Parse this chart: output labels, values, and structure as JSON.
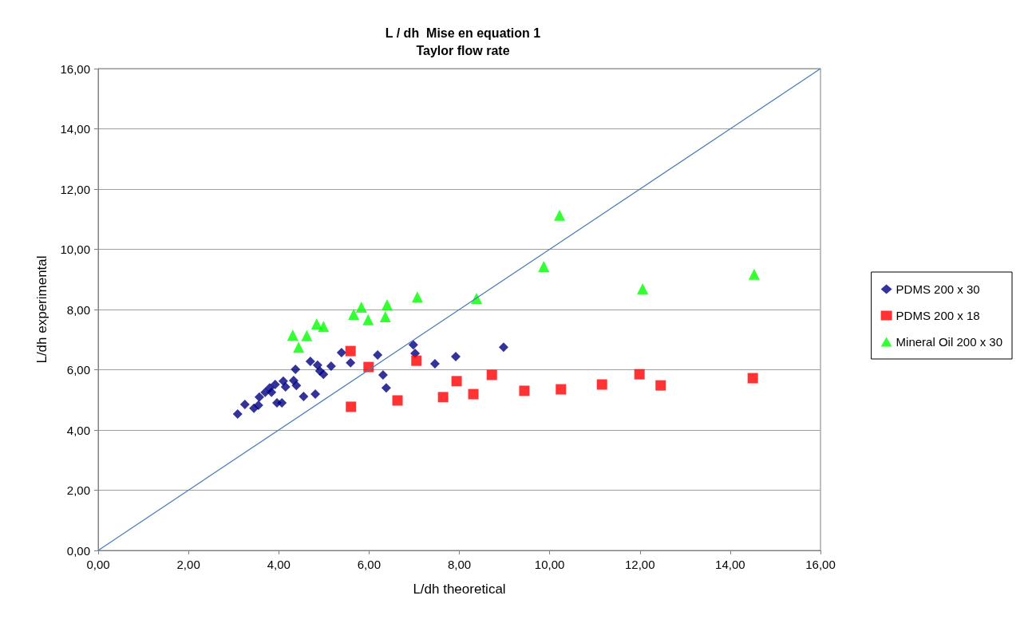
{
  "chart_data": {
    "type": "scatter",
    "title": "L / dh  Mise en equation 1",
    "subtitle": "Taylor flow rate",
    "xlabel": "L/dh theoretical",
    "ylabel": "L/dh experimental",
    "xlim": [
      0,
      16
    ],
    "ylim": [
      0,
      16
    ],
    "xticks": [
      {
        "value": 0,
        "label": "0,00"
      },
      {
        "value": 2,
        "label": "2,00"
      },
      {
        "value": 4,
        "label": "4,00"
      },
      {
        "value": 6,
        "label": "6,00"
      },
      {
        "value": 8,
        "label": "8,00"
      },
      {
        "value": 10,
        "label": "10,00"
      },
      {
        "value": 12,
        "label": "12,00"
      },
      {
        "value": 14,
        "label": "14,00"
      },
      {
        "value": 16,
        "label": "16,00"
      }
    ],
    "yticks": [
      {
        "value": 0,
        "label": "0,00"
      },
      {
        "value": 2,
        "label": "2,00"
      },
      {
        "value": 4,
        "label": "4,00"
      },
      {
        "value": 6,
        "label": "6,00"
      },
      {
        "value": 8,
        "label": "8,00"
      },
      {
        "value": 10,
        "label": "10,00"
      },
      {
        "value": 12,
        "label": "12,00"
      },
      {
        "value": 14,
        "label": "14,00"
      },
      {
        "value": 16,
        "label": "16,00"
      }
    ],
    "grid": "y",
    "legend": "right",
    "series": [
      {
        "name": "PDMS 200 x 30",
        "color": "#000080",
        "marker": "diamond",
        "x": [
          3.09,
          3.25,
          3.45,
          3.55,
          3.57,
          3.7,
          3.8,
          3.84,
          3.92,
          3.96,
          4.07,
          4.1,
          4.15,
          4.33,
          4.37,
          4.39,
          4.55,
          4.7,
          4.81,
          4.86,
          4.91,
          4.99,
          5.16,
          5.39,
          5.59,
          6.19,
          6.31,
          6.38,
          6.98,
          7.02,
          7.46,
          7.92,
          8.98
        ],
        "values": [
          4.53,
          4.85,
          4.72,
          4.82,
          5.09,
          5.25,
          5.4,
          5.25,
          5.51,
          4.9,
          4.9,
          5.62,
          5.43,
          5.64,
          6.01,
          5.48,
          5.11,
          6.28,
          5.19,
          6.15,
          5.96,
          5.85,
          6.12,
          6.57,
          6.23,
          6.49,
          5.83,
          5.4,
          6.83,
          6.54,
          6.2,
          6.44,
          6.75
        ]
      },
      {
        "name": "PDMS 200 x 18",
        "color": "#ff0000",
        "marker": "square",
        "x": [
          5.59,
          5.6,
          5.99,
          6.63,
          7.05,
          7.64,
          7.94,
          8.31,
          8.72,
          9.44,
          10.25,
          11.16,
          11.99,
          12.46,
          14.5
        ],
        "values": [
          6.62,
          4.77,
          6.09,
          4.98,
          6.3,
          5.09,
          5.62,
          5.19,
          5.83,
          5.3,
          5.35,
          5.51,
          5.85,
          5.48,
          5.72
        ]
      },
      {
        "name": "Mineral Oil 200 x 30",
        "color": "#00ff00",
        "marker": "triangle",
        "x": [
          4.31,
          4.44,
          4.62,
          4.84,
          4.99,
          5.66,
          5.83,
          5.98,
          6.36,
          6.4,
          7.07,
          8.38,
          9.87,
          10.22,
          12.06,
          14.53
        ],
        "values": [
          7.15,
          6.75,
          7.13,
          7.52,
          7.44,
          7.84,
          8.08,
          7.66,
          7.76,
          8.16,
          8.42,
          8.37,
          9.43,
          11.13,
          8.69,
          9.17
        ]
      },
      {
        "type": "line",
        "color": "#4a7ebb",
        "marker": "none",
        "line_style": "solid",
        "x": [
          0,
          16
        ],
        "values": [
          0,
          16
        ]
      }
    ]
  }
}
